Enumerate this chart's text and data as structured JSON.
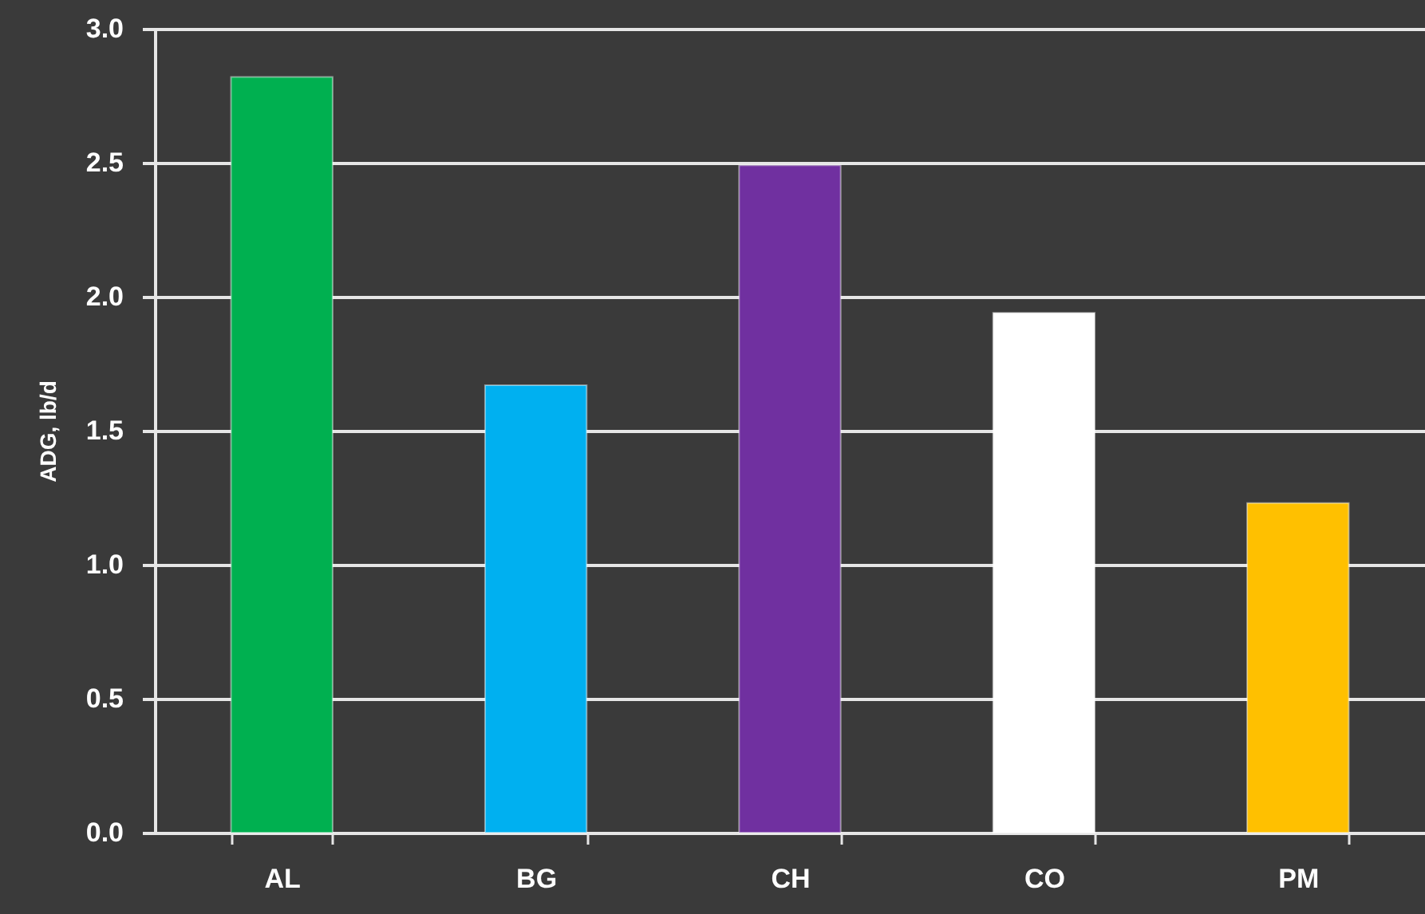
{
  "chart_data": {
    "type": "bar",
    "ylabel": "ADG, lb/d",
    "categories": [
      "AL",
      "BG",
      "CH",
      "CO",
      "PM"
    ],
    "values": [
      2.82,
      1.67,
      2.49,
      1.94,
      1.23
    ],
    "colors": [
      "#00b050",
      "#00b0f0",
      "#7030a0",
      "#ffffff",
      "#ffc000"
    ],
    "ylim": [
      0,
      3
    ],
    "yticks": [
      {
        "value": 0,
        "label": "0.0"
      },
      0.5,
      {
        "value": 1,
        "label": "1.0"
      },
      1.5,
      {
        "value": 2,
        "label": "2.0"
      },
      2.5,
      {
        "value": 3,
        "label": "3.0"
      }
    ],
    "grid": "y"
  }
}
